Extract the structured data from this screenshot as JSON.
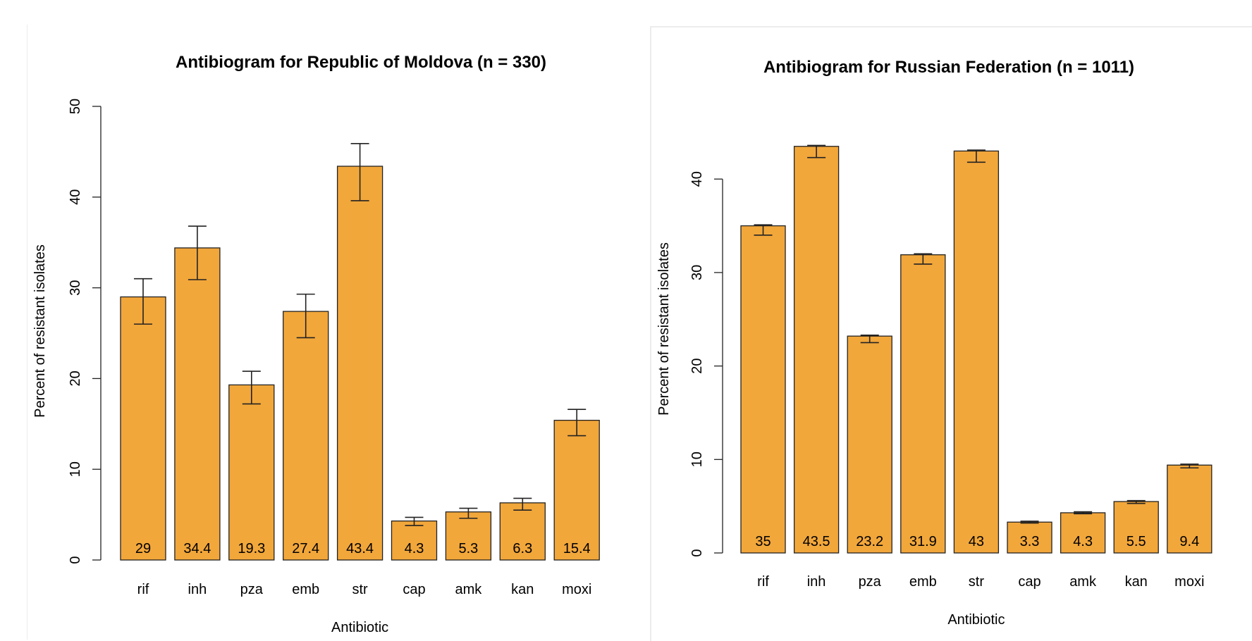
{
  "chart_data": [
    {
      "id": "moldova",
      "type": "bar",
      "title": "Antibiogram for Republic of Moldova (n = 330)",
      "xlabel": "Antibiotic",
      "ylabel": "Percent of resistant isolates",
      "categories": [
        "rif",
        "inh",
        "pza",
        "emb",
        "str",
        "cap",
        "amk",
        "kan",
        "moxi"
      ],
      "values": [
        29,
        34.4,
        19.3,
        27.4,
        43.4,
        4.3,
        5.3,
        6.3,
        15.4
      ],
      "value_labels": [
        "29",
        "34.4",
        "19.3",
        "27.4",
        "43.4",
        "4.3",
        "5.3",
        "6.3",
        "15.4"
      ],
      "error_low": [
        26.0,
        30.9,
        17.2,
        24.5,
        39.6,
        3.8,
        4.6,
        5.5,
        13.7
      ],
      "error_high": [
        31.0,
        36.8,
        20.8,
        29.3,
        45.9,
        4.7,
        5.7,
        6.8,
        16.6
      ],
      "ylim": [
        0,
        50
      ],
      "yticks": [
        0,
        10,
        20,
        30,
        40,
        50
      ],
      "bar_color": "#f2a73b",
      "grid": false,
      "legend": "none"
    },
    {
      "id": "russia",
      "type": "bar",
      "title": "Antibiogram for Russian Federation (n = 1011)",
      "xlabel": "Antibiotic",
      "ylabel": "Percent of resistant isolates",
      "categories": [
        "rif",
        "inh",
        "pza",
        "emb",
        "str",
        "cap",
        "amk",
        "kan",
        "moxi"
      ],
      "values": [
        35,
        43.5,
        23.2,
        31.9,
        43,
        3.3,
        4.3,
        5.5,
        9.4
      ],
      "value_labels": [
        "35",
        "43.5",
        "23.2",
        "31.9",
        "43",
        "3.3",
        "4.3",
        "5.5",
        "9.4"
      ],
      "error_low": [
        34.0,
        42.3,
        22.5,
        30.9,
        41.8,
        3.2,
        4.2,
        5.3,
        9.1
      ],
      "error_high": [
        35.1,
        43.6,
        23.3,
        32.0,
        43.1,
        3.4,
        4.4,
        5.6,
        9.5
      ],
      "ylim": [
        0,
        46
      ],
      "yticks": [
        0,
        10,
        20,
        30,
        40
      ],
      "bar_color": "#f2a73b",
      "grid": false,
      "legend": "none"
    }
  ]
}
